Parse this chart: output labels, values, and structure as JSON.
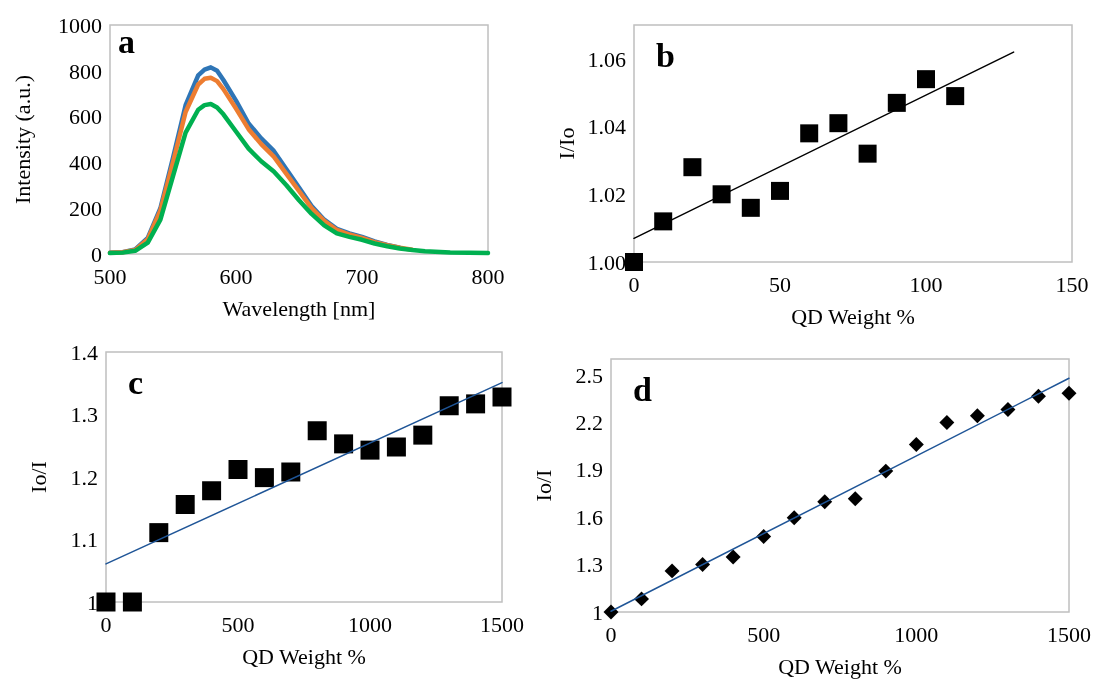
{
  "chart_data": [
    {
      "type": "line",
      "xlabel": "Wavelength [nm]",
      "ylabel": "Intensity (a.u.)",
      "annotations": [
        "a"
      ],
      "xlim": [
        500,
        800
      ],
      "ylim": [
        0,
        1000
      ],
      "xticks": [
        500,
        600,
        700,
        800
      ],
      "yticks": [
        0,
        200,
        400,
        600,
        800,
        1000
      ],
      "x": [
        500,
        510,
        520,
        530,
        540,
        550,
        560,
        570,
        575,
        580,
        585,
        590,
        600,
        610,
        620,
        630,
        640,
        650,
        660,
        670,
        680,
        690,
        700,
        710,
        720,
        730,
        740,
        750,
        770,
        800
      ],
      "series": [
        {
          "color": "#2e75b6",
          "values": [
            5,
            8,
            20,
            70,
            200,
            420,
            650,
            780,
            805,
            815,
            800,
            760,
            670,
            570,
            505,
            450,
            370,
            290,
            210,
            150,
            110,
            90,
            75,
            55,
            40,
            28,
            null,
            null,
            null,
            null
          ]
        },
        {
          "color": "#ed7d31",
          "values": [
            5,
            8,
            18,
            65,
            190,
            400,
            620,
            740,
            765,
            770,
            755,
            720,
            635,
            545,
            480,
            425,
            350,
            275,
            200,
            145,
            105,
            85,
            70,
            52,
            38,
            27,
            19,
            null,
            null,
            null
          ]
        },
        {
          "color": "#00b050",
          "values": [
            4,
            6,
            14,
            50,
            150,
            340,
            530,
            630,
            650,
            655,
            640,
            610,
            535,
            460,
            405,
            360,
            300,
            235,
            175,
            125,
            90,
            75,
            62,
            46,
            34,
            24,
            17,
            12,
            7,
            4
          ]
        }
      ]
    },
    {
      "type": "scatter",
      "xlabel": "QD Weight %",
      "ylabel": "I/Io",
      "annotations": [
        "b"
      ],
      "xlim": [
        0,
        150
      ],
      "ylim": [
        1,
        1.07
      ],
      "xticks": [
        0,
        50,
        100,
        150
      ],
      "yticks": [
        {
          "value": 1,
          "label": "1.00"
        },
        {
          "value": 1.02,
          "label": "1.02"
        },
        {
          "value": 1.04,
          "label": "1.04"
        },
        {
          "value": 1.06,
          "label": "1.06"
        }
      ],
      "series": [
        {
          "color": "#000000",
          "marker": "square",
          "x": [
            0,
            10,
            20,
            30,
            40,
            50,
            60,
            70,
            80,
            90,
            100,
            110
          ],
          "values": [
            1.0,
            1.012,
            1.028,
            1.02,
            1.016,
            1.021,
            1.038,
            1.041,
            1.032,
            1.047,
            1.054,
            1.049
          ]
        },
        {
          "type": "line",
          "color": "#000000",
          "x": [
            0,
            130
          ],
          "values": [
            1.007,
            1.062
          ]
        }
      ]
    },
    {
      "type": "scatter",
      "xlabel": "QD Weight %",
      "ylabel": "Io/I",
      "annotations": [
        "c"
      ],
      "xlim": [
        0,
        1500
      ],
      "ylim": [
        1,
        1.4
      ],
      "xticks": [
        0,
        500,
        1000,
        1500
      ],
      "yticks": [
        1,
        1.1,
        1.2,
        1.3,
        1.4
      ],
      "series": [
        {
          "color": "#000000",
          "marker": "square",
          "x": [
            0,
            100,
            200,
            300,
            400,
            500,
            600,
            700,
            800,
            900,
            1000,
            1100,
            1200,
            1300,
            1400,
            1500
          ],
          "values": [
            1.0,
            1.0,
            1.111,
            1.156,
            1.178,
            1.212,
            1.199,
            1.208,
            1.274,
            1.253,
            1.243,
            1.248,
            1.267,
            1.314,
            1.317,
            1.328
          ]
        },
        {
          "type": "line",
          "color": "#1f5597",
          "x": [
            0,
            1500
          ],
          "values": [
            1.061,
            1.351
          ]
        }
      ]
    },
    {
      "type": "scatter",
      "xlabel": "QD Weight %",
      "ylabel": "Io/I",
      "annotations": [
        "d"
      ],
      "xlim": [
        0,
        1500
      ],
      "ylim": [
        1,
        2.6
      ],
      "xticks": [
        0,
        500,
        1000,
        1500
      ],
      "yticks": [
        1,
        1.3,
        1.6,
        1.9,
        2.2,
        2.5
      ],
      "series": [
        {
          "color": "#000000",
          "marker": "diamond",
          "x": [
            0,
            100,
            200,
            300,
            400,
            500,
            600,
            700,
            800,
            900,
            1000,
            1100,
            1200,
            1300,
            1400,
            1500
          ],
          "values": [
            1.0,
            1.083,
            1.26,
            1.3,
            1.348,
            1.478,
            1.596,
            1.697,
            1.716,
            1.891,
            2.059,
            2.199,
            2.241,
            2.281,
            2.364,
            2.383
          ]
        },
        {
          "type": "line",
          "color": "#1f5597",
          "x": [
            0,
            1500
          ],
          "values": [
            1.005,
            2.478
          ]
        }
      ]
    }
  ]
}
